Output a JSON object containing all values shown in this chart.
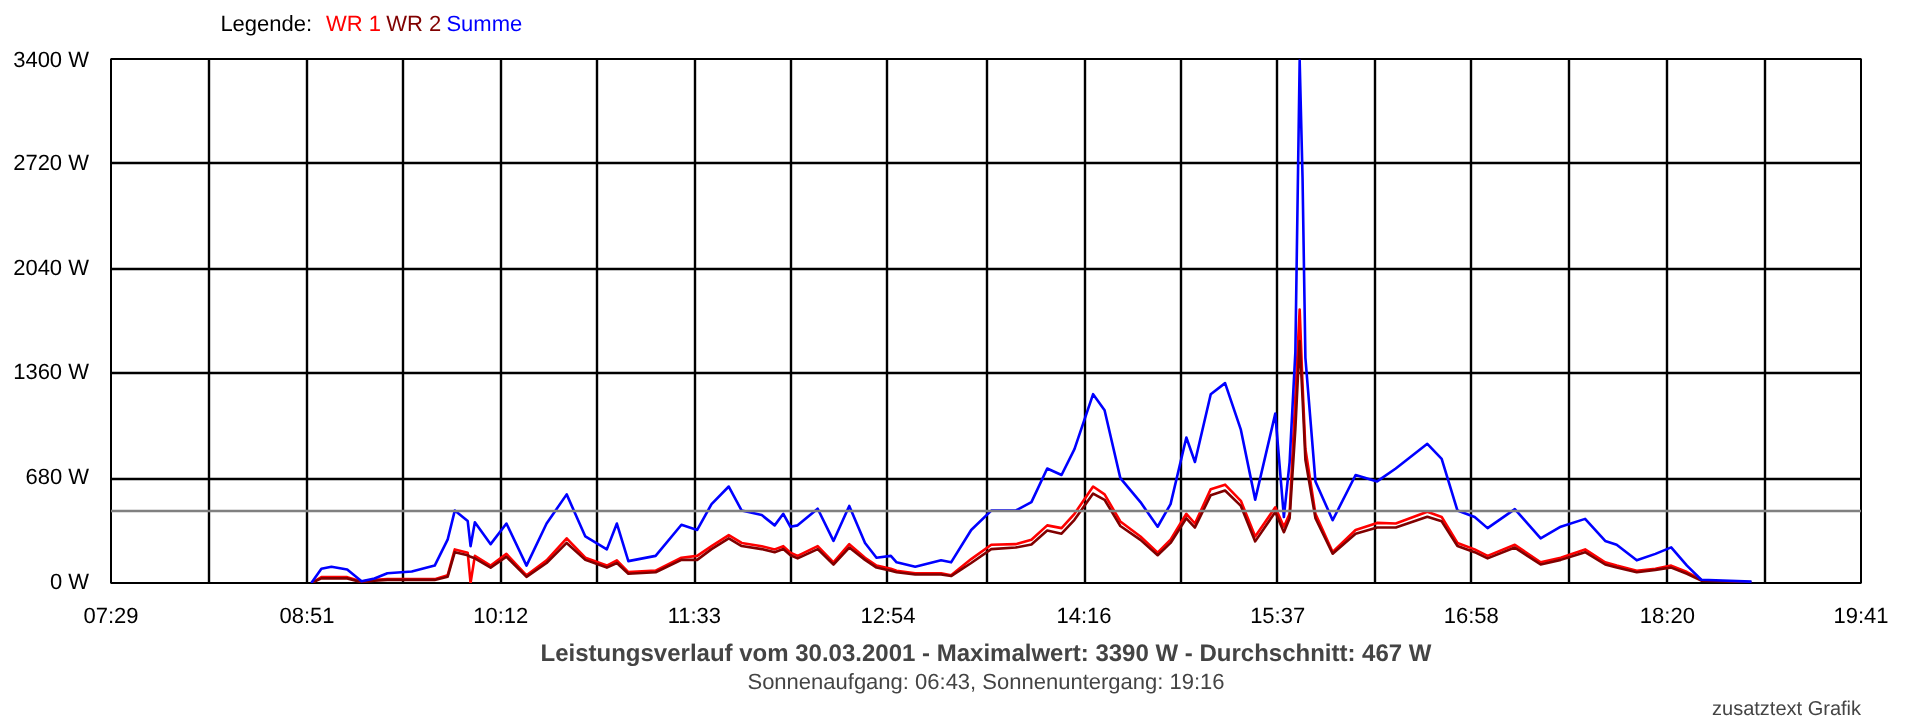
{
  "chart_data": {
    "type": "line",
    "title": "Leistungsverlauf vom 30.03.2001 - Maximalwert: 3390 W - Durchschnitt: 467 W",
    "subtitle": "Sonnenaufgang: 06:43, Sonnenuntergang: 19:16",
    "annotations": [
      "zusatztext Grafik"
    ],
    "legend_title": "Legende:",
    "grid": true,
    "line_style": "solid",
    "x": [
      8.88,
      8.95,
      9.02,
      9.13,
      9.23,
      9.32,
      9.41,
      9.58,
      9.74,
      9.83,
      9.88,
      9.97,
      9.99,
      10.02,
      10.13,
      10.24,
      10.38,
      10.52,
      10.66,
      10.79,
      10.94,
      11.01,
      11.09,
      11.28,
      11.46,
      11.57,
      11.67,
      11.79,
      11.88,
      12.02,
      12.11,
      12.17,
      12.22,
      12.27,
      12.41,
      12.52,
      12.63,
      12.74,
      12.82,
      12.92,
      12.96,
      13.09,
      13.27,
      13.34,
      13.48,
      13.62,
      13.79,
      13.9,
      14.01,
      14.11,
      14.2,
      14.33,
      14.41,
      14.52,
      14.66,
      14.78,
      14.87,
      14.98,
      15.04,
      15.15,
      15.25,
      15.36,
      15.46,
      15.6,
      15.66,
      15.7,
      15.74,
      15.77,
      15.79,
      15.81,
      15.88,
      16.0,
      16.16,
      16.31,
      16.44,
      16.66,
      16.76,
      16.87,
      16.99,
      17.08,
      17.27,
      17.45,
      17.59,
      17.76,
      17.9,
      17.98,
      18.12,
      18.25,
      18.36,
      18.47,
      18.57,
      18.92
    ],
    "series": [
      {
        "name": "WR 1",
        "color": "#ff0000",
        "values": [
          0,
          38,
          38,
          38,
          10,
          21,
          25,
          25,
          25,
          50,
          218,
          197,
          0,
          176,
          113,
          189,
          50,
          147,
          290,
          164,
          113,
          147,
          71,
          80,
          164,
          176,
          239,
          311,
          260,
          239,
          218,
          239,
          197,
          176,
          239,
          134,
          252,
          164,
          113,
          92,
          80,
          63,
          63,
          50,
          155,
          248,
          252,
          281,
          374,
          356,
          449,
          626,
          575,
          399,
          302,
          197,
          281,
          449,
          386,
          609,
          638,
          533,
          302,
          491,
          365,
          449,
          1209,
          1775,
          1288,
          869,
          449,
          201,
          344,
          390,
          386,
          462,
          428,
          260,
          218,
          176,
          248,
          134,
          164,
          218,
          134,
          113,
          80,
          92,
          113,
          71,
          21,
          null
        ]
      },
      {
        "name": "WR 2",
        "color": "#800000",
        "values": [
          0,
          30,
          30,
          30,
          5,
          15,
          20,
          20,
          20,
          40,
          200,
          180,
          170,
          160,
          100,
          170,
          40,
          130,
          260,
          150,
          100,
          130,
          60,
          70,
          150,
          150,
          220,
          290,
          240,
          220,
          200,
          220,
          180,
          160,
          220,
          120,
          230,
          150,
          100,
          80,
          70,
          55,
          55,
          45,
          130,
          220,
          230,
          250,
          340,
          320,
          410,
          580,
          540,
          370,
          280,
          180,
          260,
          420,
          360,
          570,
          600,
          500,
          270,
          460,
          330,
          420,
          1000,
          1570,
          1200,
          800,
          420,
          190,
          320,
          360,
          360,
          430,
          400,
          240,
          200,
          160,
          230,
          120,
          150,
          200,
          120,
          100,
          70,
          85,
          100,
          60,
          15,
          5
        ]
      },
      {
        "name": "Summe",
        "color": "#0000ff",
        "values": [
          0,
          92,
          105,
          88,
          12,
          29,
          63,
          75,
          113,
          281,
          470,
          403,
          239,
          394,
          252,
          386,
          113,
          386,
          575,
          302,
          218,
          386,
          142,
          176,
          378,
          344,
          512,
          626,
          470,
          441,
          374,
          449,
          365,
          374,
          482,
          273,
          500,
          260,
          164,
          176,
          134,
          105,
          147,
          134,
          344,
          470,
          470,
          525,
          743,
          701,
          869,
          1225,
          1121,
          680,
          525,
          365,
          512,
          944,
          785,
          1225,
          1297,
          995,
          541,
          1099,
          428,
          785,
          1499,
          3390,
          2632,
          1461,
          659,
          407,
          701,
          659,
          743,
          903,
          806,
          470,
          428,
          356,
          479,
          290,
          365,
          416,
          273,
          248,
          147,
          189,
          231,
          113,
          21,
          9
        ]
      }
    ],
    "xlim": [
      7.4833,
      19.6833
    ],
    "xticks": [
      {
        "value": 7.4833,
        "label": "07:29"
      },
      {
        "value": 8.1667,
        "label": null
      },
      {
        "value": 8.85,
        "label": "08:51"
      },
      {
        "value": 9.525,
        "label": null
      },
      {
        "value": 10.2,
        "label": "10:12"
      },
      {
        "value": 10.875,
        "label": null
      },
      {
        "value": 11.55,
        "label": "11:33"
      },
      {
        "value": 12.225,
        "label": null
      },
      {
        "value": 12.9,
        "label": "12:54"
      },
      {
        "value": 13.5833,
        "label": null
      },
      {
        "value": 14.2667,
        "label": "14:16"
      },
      {
        "value": 14.9417,
        "label": null
      },
      {
        "value": 15.6167,
        "label": "15:37"
      },
      {
        "value": 16.2917,
        "label": null
      },
      {
        "value": 16.9667,
        "label": "16:58"
      },
      {
        "value": 17.65,
        "label": null
      },
      {
        "value": 18.3333,
        "label": "18:20"
      },
      {
        "value": 19.0083,
        "label": null
      },
      {
        "value": 19.6833,
        "label": "19:41"
      }
    ],
    "ylim": [
      0,
      3400
    ],
    "yticks": [
      {
        "value": 0,
        "label": "0 W"
      },
      {
        "value": 680,
        "label": "680 W"
      },
      {
        "value": 1360,
        "label": "1360 W"
      },
      {
        "value": 2040,
        "label": "2040 W"
      },
      {
        "value": 2720,
        "label": "2720 W"
      },
      {
        "value": 3400,
        "label": "3400 W"
      }
    ],
    "ref_lines": [
      {
        "axis": "y",
        "value": 467,
        "color": "#808080"
      }
    ]
  }
}
